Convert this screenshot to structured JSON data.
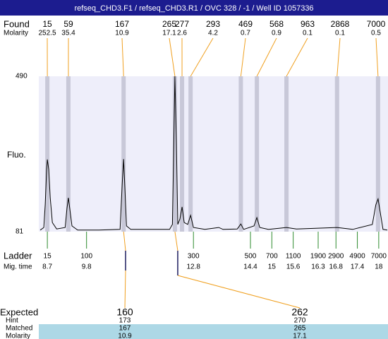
{
  "header": {
    "title": "refseq_CHD3.F1 / refseq_CHD3.R1 / OVC 328 / -1 / Well ID 1057336"
  },
  "chart_data": {
    "type": "line",
    "y_label": "Fluo.",
    "ylim": [
      81,
      490
    ],
    "yticks": [
      81,
      490
    ],
    "xlim": [
      8.46,
      18.26
    ],
    "color": "#000000",
    "x": [
      8.5,
      8.6,
      8.64,
      8.68,
      8.7,
      8.74,
      8.78,
      8.84,
      8.96,
      9.2,
      9.25,
      9.29,
      9.33,
      9.39,
      9.55,
      10.15,
      10.74,
      10.8,
      10.84,
      10.88,
      10.92,
      11.04,
      12.13,
      12.21,
      12.25,
      12.28,
      12.32,
      12.36,
      12.42,
      12.48,
      12.54,
      12.64,
      12.72,
      12.8,
      13.12,
      13.51,
      13.63,
      14.03,
      14.13,
      14.21,
      14.5,
      14.58,
      14.66,
      14.9,
      15.41,
      15.69,
      16.83,
      17.27,
      17.82,
      17.92,
      17.98,
      18.04,
      18.12,
      18.24
    ],
    "values": [
      85,
      92,
      152,
      245,
      271,
      245,
      170,
      105,
      88,
      92,
      142,
      170,
      142,
      96,
      85,
      85,
      87,
      206,
      272,
      189,
      96,
      87,
      87,
      100,
      319,
      490,
      319,
      100,
      114,
      146,
      105,
      100,
      124,
      92,
      87,
      92,
      87,
      88,
      101,
      87,
      96,
      118,
      92,
      87,
      92,
      88,
      92,
      87,
      100,
      152,
      167,
      133,
      87,
      85
    ],
    "found": {
      "label": "Found",
      "molarity_label": "Molarity",
      "sizes": [
        15,
        59,
        167,
        265,
        277,
        293,
        469,
        568,
        963,
        2868,
        7000
      ],
      "molarity": [
        252.5,
        35.4,
        10.9,
        17.1,
        2.6,
        4.2,
        0.7,
        0.9,
        0.1,
        0.1,
        0.5
      ],
      "times": [
        8.7,
        9.29,
        10.84,
        12.28,
        12.48,
        12.72,
        14.13,
        14.58,
        15.41,
        16.83,
        17.98
      ]
    },
    "ladder": {
      "label": "Ladder",
      "time_label": "Mig. time",
      "sizes": [
        15,
        100,
        300,
        500,
        700,
        1100,
        1900,
        2900,
        4900,
        7000
      ],
      "times": [
        8.7,
        9.8,
        12.8,
        14.4,
        15,
        15.6,
        16.3,
        16.8,
        17.4,
        18
      ]
    },
    "expected": {
      "label": "Expected",
      "hint_label": "Hint",
      "matched_label": "Matched",
      "molarity_label": "Molarity",
      "sizes": [
        160,
        262
      ],
      "hint": [
        173,
        270
      ],
      "matched": [
        167,
        265
      ],
      "molarity": [
        10.9,
        17.1
      ]
    }
  }
}
